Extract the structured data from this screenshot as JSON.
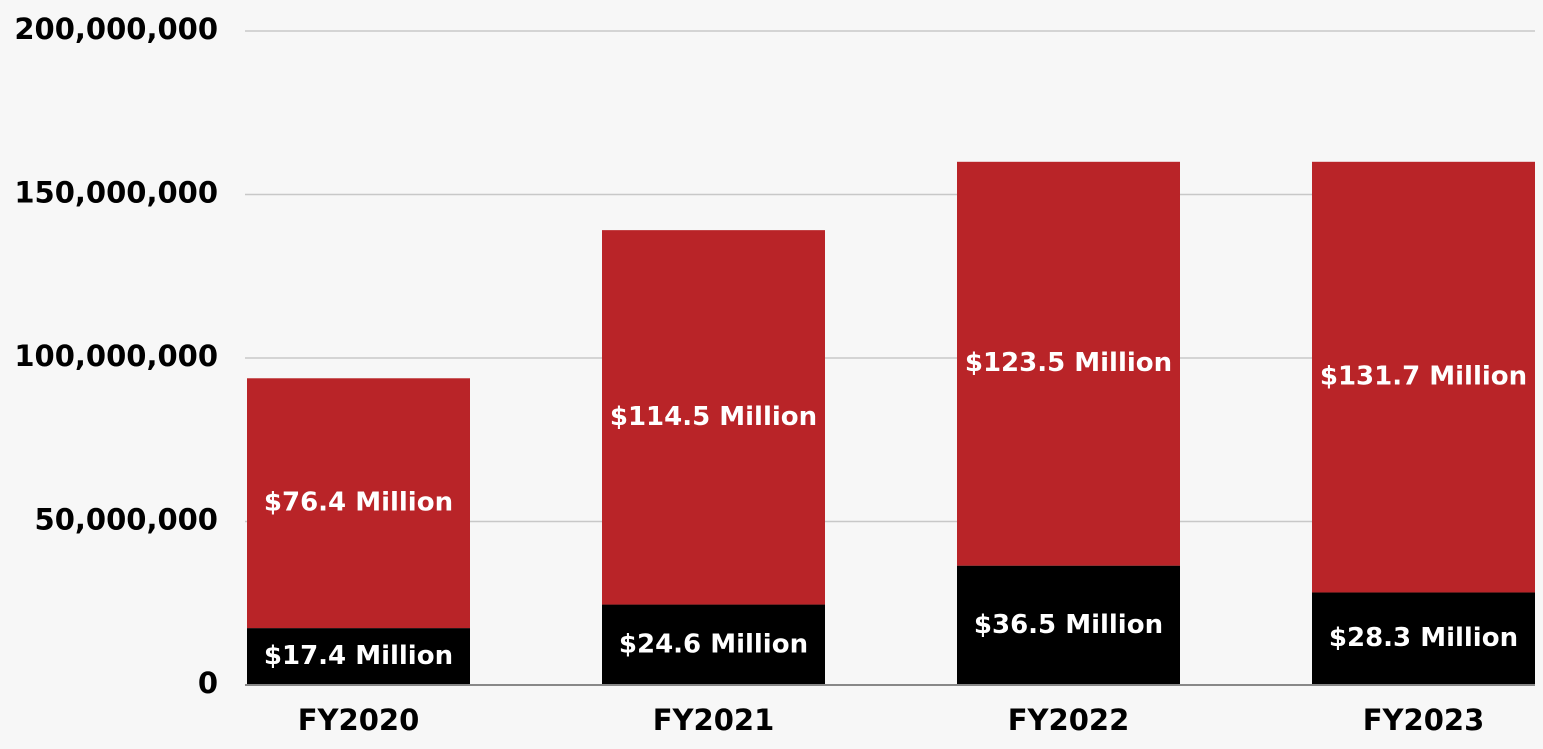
{
  "chart_data": {
    "type": "stacked-bar",
    "categories": [
      "FY2020",
      "FY2021",
      "FY2022",
      "FY2023"
    ],
    "series": [
      {
        "color": "#000000",
        "values": [
          17400000,
          24600000,
          36500000,
          28300000
        ],
        "value_labels": [
          "$17.4 Million",
          "$24.6 Million",
          "$36.5 Million",
          "$28.3 Million"
        ]
      },
      {
        "color": "#b92428",
        "values": [
          76400000,
          114500000,
          123500000,
          131700000
        ],
        "value_labels": [
          "$76.4 Million",
          "$114.5 Million",
          "$123.5 Million",
          "$131.7 Million"
        ]
      }
    ],
    "ylim": [
      0,
      200000000
    ],
    "yticks": [
      0,
      {
        "value": 50000000,
        "label": "50,000,000"
      },
      {
        "value": 100000000,
        "label": "100,000,000"
      },
      {
        "value": 150000000,
        "label": "150,000,000"
      },
      {
        "value": 200000000,
        "label": "200,000,000"
      }
    ],
    "grid": true
  }
}
